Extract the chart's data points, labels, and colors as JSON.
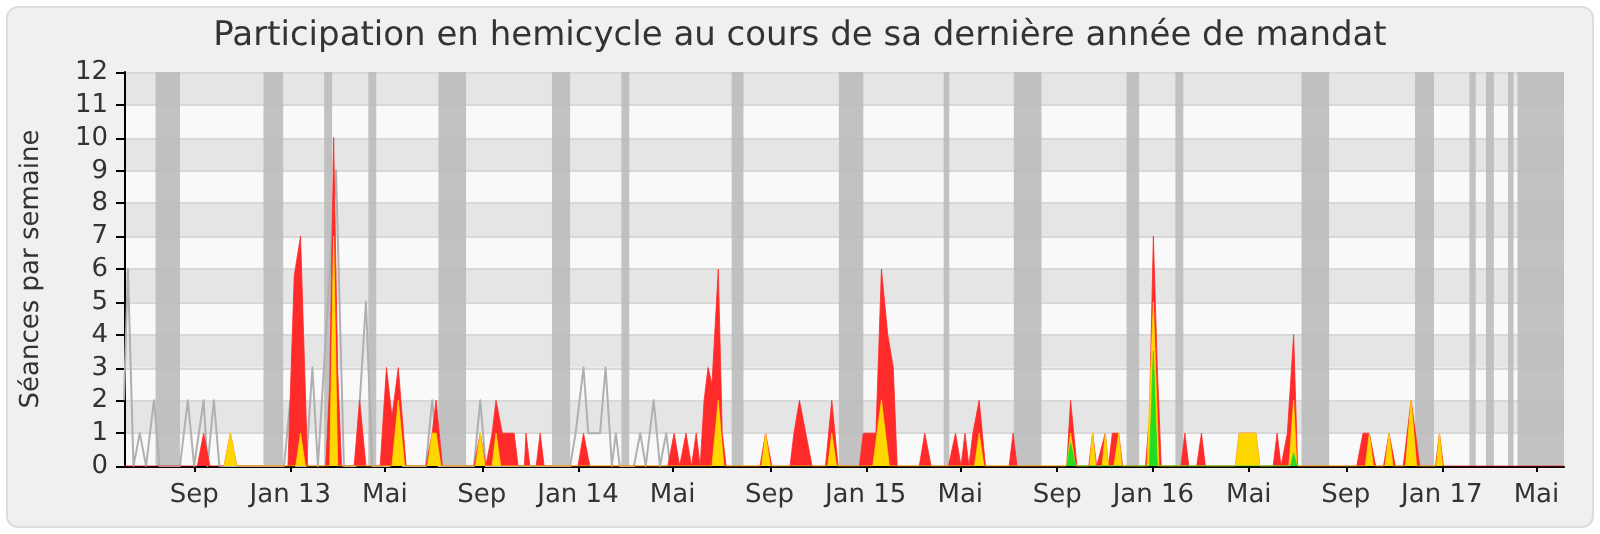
{
  "chart_data": {
    "type": "area",
    "title": "Participation en hemicycle au cours de sa dernière année de mandat",
    "ylabel": "Séances par semaine",
    "xlim": [
      "2012-06-04",
      "2017-06-05"
    ],
    "xticks": [
      {
        "value": "2012-09-01",
        "label": "Sep"
      },
      {
        "value": "2013-01-01",
        "label": "Jan 13"
      },
      {
        "value": "2013-05-01",
        "label": "Mai"
      },
      {
        "value": "2013-09-01",
        "label": "Sep"
      },
      {
        "value": "2014-01-01",
        "label": "Jan 14"
      },
      {
        "value": "2014-05-01",
        "label": "Mai"
      },
      {
        "value": "2014-09-01",
        "label": "Sep"
      },
      {
        "value": "2015-01-01",
        "label": "Jan 15"
      },
      {
        "value": "2015-05-01",
        "label": "Mai"
      },
      {
        "value": "2015-09-01",
        "label": "Sep"
      },
      {
        "value": "2016-01-01",
        "label": "Jan 16"
      },
      {
        "value": "2016-05-01",
        "label": "Mai"
      },
      {
        "value": "2016-09-01",
        "label": "Sep"
      },
      {
        "value": "2017-01-01",
        "label": "Jan 17"
      },
      {
        "value": "2017-05-01",
        "label": "Mai"
      }
    ],
    "ylim": [
      0,
      12
    ],
    "yticks": [
      0,
      1,
      2,
      3,
      4,
      5,
      6,
      7,
      8,
      9,
      10,
      11,
      12
    ],
    "grid": "y",
    "bands": [
      {
        "axis": "x",
        "from": "2012-07-14",
        "to": "2012-08-14",
        "color": "#bbbbbb"
      },
      {
        "axis": "x",
        "from": "2012-11-28",
        "to": "2012-12-23",
        "color": "#bbbbbb"
      },
      {
        "axis": "x",
        "from": "2013-02-13",
        "to": "2013-02-23",
        "color": "#bbbbbb"
      },
      {
        "axis": "x",
        "from": "2013-04-10",
        "to": "2013-04-20",
        "color": "#bbbbbb"
      },
      {
        "axis": "x",
        "from": "2013-07-08",
        "to": "2013-08-12",
        "color": "#bbbbbb"
      },
      {
        "axis": "x",
        "from": "2013-11-29",
        "to": "2013-12-22",
        "color": "#bbbbbb"
      },
      {
        "axis": "x",
        "from": "2014-02-25",
        "to": "2014-03-07",
        "color": "#bbbbbb"
      },
      {
        "axis": "x",
        "from": "2014-07-15",
        "to": "2014-07-30",
        "color": "#bbbbbb"
      },
      {
        "axis": "x",
        "from": "2014-11-28",
        "to": "2014-12-29",
        "color": "#bbbbbb"
      },
      {
        "axis": "x",
        "from": "2015-04-10",
        "to": "2015-04-17",
        "color": "#bbbbbb"
      },
      {
        "axis": "x",
        "from": "2015-07-08",
        "to": "2015-08-12",
        "color": "#bbbbbb"
      },
      {
        "axis": "x",
        "from": "2015-11-28",
        "to": "2015-12-14",
        "color": "#bbbbbb"
      },
      {
        "axis": "x",
        "from": "2016-01-29",
        "to": "2016-02-08",
        "color": "#bbbbbb"
      },
      {
        "axis": "x",
        "from": "2016-07-07",
        "to": "2016-08-11",
        "color": "#bbbbbb"
      },
      {
        "axis": "x",
        "from": "2016-11-28",
        "to": "2016-12-22",
        "color": "#bbbbbb"
      },
      {
        "axis": "x",
        "from": "2017-02-05",
        "to": "2017-02-13",
        "color": "#bbbbbb"
      },
      {
        "axis": "x",
        "from": "2017-02-26",
        "to": "2017-03-08",
        "color": "#bbbbbb"
      },
      {
        "axis": "x",
        "from": "2017-03-26",
        "to": "2017-04-02",
        "color": "#bbbbbb"
      },
      {
        "axis": "x",
        "from": "2017-04-07",
        "to": "2017-06-05",
        "color": "#bbbbbb"
      }
    ],
    "series": [
      {
        "type": "line",
        "color": "#b0b0b0",
        "x": [
          "2012-06-04",
          "2012-06-09",
          "2012-06-16",
          "2012-06-24",
          "2012-07-02",
          "2012-07-12",
          "2012-07-19",
          "2012-08-14",
          "2012-08-24",
          "2012-09-01",
          "2012-09-13",
          "2012-09-18",
          "2012-09-26",
          "2012-10-03",
          "2012-12-24",
          "2013-01-01",
          "2013-01-08",
          "2013-01-21",
          "2013-01-29",
          "2013-02-05",
          "2013-02-28",
          "2013-03-10",
          "2013-03-25",
          "2013-04-07",
          "2013-04-15",
          "2013-05-08",
          "2013-05-15",
          "2013-05-23",
          "2013-06-22",
          "2013-06-30",
          "2013-07-08",
          "2013-08-22",
          "2013-08-30",
          "2013-09-06",
          "2013-12-22",
          "2013-12-29",
          "2014-01-08",
          "2014-01-14",
          "2014-01-21",
          "2014-01-29",
          "2014-02-05",
          "2014-02-13",
          "2014-02-18",
          "2014-02-23",
          "2014-03-13",
          "2014-03-21",
          "2014-03-28",
          "2014-04-07",
          "2014-04-15",
          "2014-04-23",
          "2014-04-28"
        ],
        "values": [
          2,
          6,
          0,
          1,
          0,
          2,
          0,
          0,
          2,
          0,
          2,
          0,
          2,
          0,
          0,
          2,
          0,
          0,
          3,
          0,
          9,
          0,
          0,
          5,
          0,
          0,
          null,
          0,
          0,
          2,
          0,
          0,
          2,
          0,
          0,
          1,
          3,
          1,
          1,
          1,
          3,
          0,
          1,
          0,
          0,
          1,
          0,
          2,
          0,
          1,
          0
        ]
      },
      {
        "color": "#ff2a2a",
        "x": [
          "2012-06-04",
          "2012-09-05",
          "2012-09-13",
          "2012-09-21",
          "2012-10-09",
          "2012-10-17",
          "2012-10-25",
          "2012-12-29",
          "2013-01-06",
          "2013-01-14",
          "2013-01-23",
          "2013-02-15",
          "2013-02-20",
          "2013-02-25",
          "2013-03-02",
          "2013-03-07",
          "2013-03-23",
          "2013-03-30",
          "2013-04-07",
          "2013-04-25",
          "2013-05-03",
          "2013-05-10",
          "2013-05-18",
          "2013-05-28",
          "2013-06-22",
          "2013-06-30",
          "2013-07-05",
          "2013-07-13",
          "2013-08-22",
          "2013-08-30",
          "2013-09-06",
          "2013-09-14",
          "2013-09-19",
          "2013-09-27",
          "2013-10-12",
          "2013-10-17",
          "2013-10-25",
          "2013-10-27",
          "2013-11-01",
          "2013-11-09",
          "2013-11-14",
          "2013-11-19",
          "2014-01-01",
          "2014-01-08",
          "2014-01-16",
          "2014-04-25",
          "2014-05-03",
          "2014-05-10",
          "2014-05-18",
          "2014-05-25",
          "2014-05-31",
          "2014-06-05",
          "2014-06-10",
          "2014-06-15",
          "2014-06-20",
          "2014-06-28",
          "2014-07-03",
          "2014-07-08",
          "2014-08-20",
          "2014-08-27",
          "2014-09-04",
          "2014-09-27",
          "2014-10-02",
          "2014-10-09",
          "2014-10-17",
          "2014-10-25",
          "2014-11-11",
          "2014-11-19",
          "2014-11-27",
          "2014-12-24",
          "2014-12-29",
          "2015-01-14",
          "2015-01-21",
          "2015-01-29",
          "2015-02-05",
          "2015-02-10",
          "2015-03-10",
          "2015-03-17",
          "2015-03-25",
          "2015-04-16",
          "2015-04-25",
          "2015-05-02",
          "2015-05-07",
          "2015-05-12",
          "2015-05-17",
          "2015-05-25",
          "2015-06-02",
          "2015-07-02",
          "2015-07-07",
          "2015-07-12",
          "2015-09-13",
          "2015-09-18",
          "2015-09-26",
          "2015-10-11",
          "2015-10-16",
          "2015-10-21",
          "2015-11-01",
          "2015-11-05",
          "2015-11-10",
          "2015-11-18",
          "2015-11-23",
          "2015-12-22",
          "2015-12-27",
          "2016-01-01",
          "2016-01-06",
          "2016-01-11",
          "2016-02-05",
          "2016-02-10",
          "2016-02-15",
          "2016-02-25",
          "2016-03-02",
          "2016-03-07",
          "2016-04-14",
          "2016-04-19",
          "2016-05-10",
          "2016-05-15",
          "2016-06-01",
          "2016-06-06",
          "2016-06-11",
          "2016-06-19",
          "2016-06-27",
          "2016-07-02",
          "2016-09-15",
          "2016-09-23",
          "2016-10-01",
          "2016-10-09",
          "2016-10-19",
          "2016-10-26",
          "2016-11-03",
          "2016-11-13",
          "2016-11-23",
          "2016-12-04",
          "2016-12-24",
          "2016-12-29",
          "2017-01-03",
          "2017-06-05"
        ],
        "values": [
          0,
          0,
          1,
          0,
          0,
          1,
          0,
          0,
          5.8,
          7,
          0,
          0,
          2.5,
          10,
          3,
          0,
          0,
          2,
          0,
          0,
          3,
          1.5,
          3,
          0,
          0,
          1,
          2,
          0,
          0,
          1,
          0,
          1,
          2,
          1,
          1,
          0,
          0,
          1,
          0,
          0,
          1,
          0,
          0,
          1,
          0,
          0,
          1,
          0,
          1,
          0,
          1,
          0,
          2,
          3,
          2.5,
          6,
          1,
          0,
          0,
          1,
          0,
          0,
          1,
          2,
          1,
          0,
          0,
          2,
          0,
          0,
          1,
          1,
          6,
          4,
          3,
          0,
          0,
          1,
          0,
          0,
          1,
          0,
          1,
          0,
          1,
          2,
          0,
          0,
          1,
          0,
          0,
          2,
          0,
          0,
          1,
          0,
          1,
          0,
          1,
          1,
          0,
          0,
          1.5,
          7,
          3,
          0,
          0,
          1,
          0,
          0,
          1,
          0,
          0,
          1,
          1,
          0,
          0,
          1,
          0,
          1,
          4,
          0,
          0,
          1,
          1,
          0,
          0,
          1,
          0,
          0,
          2,
          0,
          0,
          1,
          0,
          0
        ]
      },
      {
        "color": "#ffd700",
        "x": [
          "2012-10-09",
          "2012-10-17",
          "2012-10-25",
          "2013-01-08",
          "2013-01-14",
          "2013-01-20",
          "2013-02-20",
          "2013-02-25",
          "2013-03-02",
          "2013-05-10",
          "2013-05-18",
          "2013-05-26",
          "2013-06-24",
          "2013-06-30",
          "2013-07-05",
          "2013-07-11",
          "2013-08-24",
          "2013-08-30",
          "2013-09-05",
          "2013-09-14",
          "2013-09-19",
          "2013-09-25",
          "2014-06-20",
          "2014-06-28",
          "2014-07-05",
          "2014-08-22",
          "2014-08-27",
          "2014-09-02",
          "2014-11-14",
          "2014-11-19",
          "2014-11-25",
          "2015-01-10",
          "2015-01-21",
          "2015-01-31",
          "2015-05-19",
          "2015-05-25",
          "2015-05-31",
          "2015-09-13",
          "2015-09-18",
          "2015-09-24",
          "2015-10-12",
          "2015-10-16",
          "2015-10-20",
          "2015-10-28",
          "2015-11-01",
          "2015-11-05",
          "2015-11-12",
          "2015-11-18",
          "2015-11-22",
          "2015-12-24",
          "2016-01-01",
          "2016-01-08",
          "2016-04-14",
          "2016-04-19",
          "2016-05-10",
          "2016-05-15",
          "2016-06-21",
          "2016-06-27",
          "2016-07-01",
          "2016-09-26",
          "2016-10-01",
          "2016-10-06",
          "2016-10-21",
          "2016-10-26",
          "2016-10-31",
          "2016-11-16",
          "2016-11-23",
          "2016-11-30",
          "2016-12-25",
          "2016-12-29",
          "2017-01-02"
        ],
        "values": [
          0,
          1,
          0,
          0,
          1,
          0,
          0,
          7,
          0,
          0,
          2,
          0,
          0,
          1,
          1,
          0,
          0,
          1,
          0,
          0,
          1,
          0,
          0,
          2,
          0,
          0,
          1,
          0,
          0,
          1,
          0,
          0,
          2,
          0,
          0,
          1,
          0,
          0,
          1,
          0,
          0,
          1,
          0,
          0,
          1,
          0,
          0,
          1,
          0,
          0,
          5,
          0,
          0,
          1,
          1,
          0,
          0,
          2,
          0,
          0,
          1,
          0,
          0,
          1,
          0,
          0,
          2,
          0,
          0,
          1,
          0
        ]
      },
      {
        "color": "#22dd22",
        "x": [
          "2015-09-13",
          "2015-09-18",
          "2015-09-24",
          "2015-12-27",
          "2016-01-01",
          "2016-01-06",
          "2016-06-23",
          "2016-06-27",
          "2016-07-01"
        ],
        "values": [
          0,
          0.7,
          0,
          0,
          3.5,
          0,
          0,
          0.4,
          0
        ]
      }
    ]
  }
}
